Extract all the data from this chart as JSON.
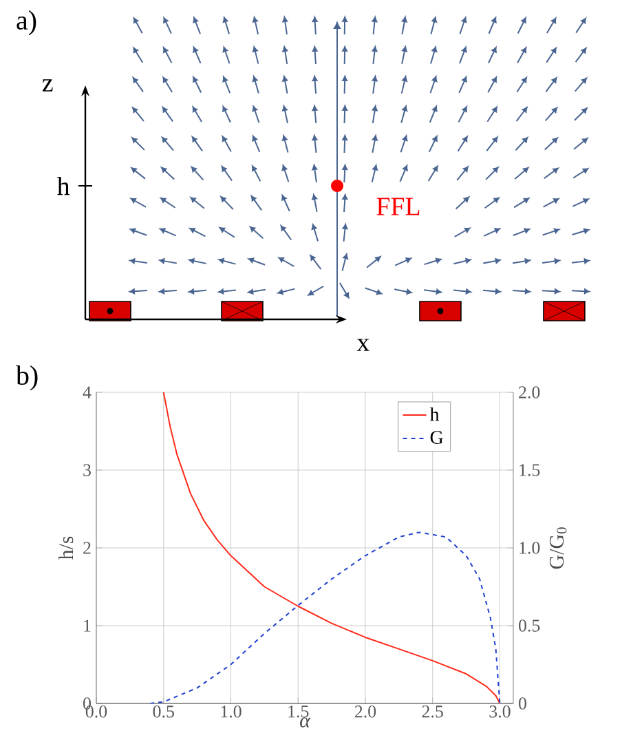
{
  "chart_data": [
    {
      "type": "other",
      "title": "a)",
      "annotations": [
        "z",
        "h",
        "x",
        "FFL"
      ]
    },
    {
      "type": "line",
      "title": "b)",
      "xlabel": "α",
      "ylabel": "h/s",
      "y2label": "G/G$_{0}$",
      "xlim": [
        0,
        3.1
      ],
      "ylim": [
        0,
        4
      ],
      "y2lim": [
        0,
        2
      ],
      "xticks": [
        {
          "value": 0,
          "label": "0.0"
        },
        {
          "value": 0.5,
          "label": "0.5"
        },
        {
          "value": 1,
          "label": "1.0"
        },
        {
          "value": 1.5,
          "label": "1.5"
        },
        {
          "value": 2,
          "label": "2.0"
        },
        {
          "value": 2.5,
          "label": "2.5"
        },
        {
          "value": 3,
          "label": "3.0"
        }
      ],
      "yticks": [
        0,
        1,
        2,
        3,
        4
      ],
      "y2ticks": [
        0,
        0.5,
        {
          "value": 1,
          "label": "1.0"
        },
        1.5,
        {
          "value": 2,
          "label": "2.0"
        }
      ],
      "grid": true,
      "legend": "top right",
      "marker": "none",
      "series": [
        {
          "name": "h",
          "color": "#ff2a1a",
          "line_style": "solid",
          "x": [
            0.5,
            0.55,
            0.6,
            0.7,
            0.8,
            0.9,
            1.0,
            1.25,
            1.5,
            1.75,
            2.0,
            2.25,
            2.5,
            2.75,
            2.9,
            2.97,
            3.0
          ],
          "values": [
            4.0,
            3.55,
            3.2,
            2.7,
            2.35,
            2.1,
            1.9,
            1.5,
            1.25,
            1.03,
            0.85,
            0.7,
            0.55,
            0.38,
            0.22,
            0.1,
            0.0
          ]
        },
        {
          "name": "G",
          "color": "#1f3fd0",
          "line_style": "dashed",
          "axis": "y2",
          "x": [
            0.4,
            0.5,
            0.75,
            1.0,
            1.25,
            1.5,
            1.75,
            2.0,
            2.25,
            2.4,
            2.6,
            2.75,
            2.85,
            2.93,
            2.97,
            3.0
          ],
          "values": [
            0.0,
            0.01,
            0.1,
            0.25,
            0.45,
            0.63,
            0.8,
            0.95,
            1.07,
            1.1,
            1.07,
            0.95,
            0.8,
            0.55,
            0.35,
            0.0
          ]
        }
      ]
    }
  ]
}
